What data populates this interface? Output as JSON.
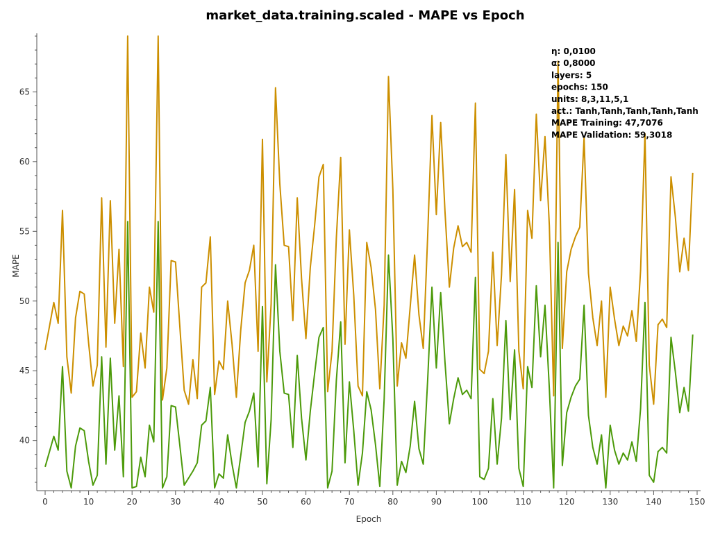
{
  "chart_data": {
    "type": "line",
    "title": "market_data.training.scaled - MAPE vs Epoch",
    "xlabel": "Epoch",
    "ylabel": "MAPE",
    "xlim": [
      0,
      150
    ],
    "ylim": [
      36.4,
      69.2
    ],
    "x_ticks": [
      0,
      10,
      20,
      30,
      40,
      50,
      60,
      70,
      80,
      90,
      100,
      110,
      120,
      130,
      140,
      150
    ],
    "y_ticks": [
      40,
      45,
      50,
      55,
      60,
      65
    ],
    "grid": false,
    "legend": "none",
    "series": [
      {
        "color": "#cc8f00",
        "values": [
          46.5,
          48.2,
          49.9,
          48.4,
          56.5,
          46.0,
          43.4,
          48.8,
          50.7,
          50.5,
          47.0,
          43.9,
          45.4,
          57.4,
          46.7,
          57.2,
          48.4,
          53.7,
          45.3,
          69.0,
          43.1,
          43.5,
          47.7,
          45.2,
          51.0,
          49.2,
          69.0,
          42.9,
          45.2,
          52.9,
          52.8,
          48.1,
          43.6,
          42.6,
          45.8,
          43.0,
          51.0,
          51.3,
          54.6,
          43.3,
          45.7,
          45.1,
          50.0,
          46.9,
          43.1,
          47.9,
          51.3,
          52.2,
          54.0,
          46.4,
          61.6,
          44.2,
          49.8,
          65.3,
          58.4,
          54.0,
          53.9,
          48.6,
          57.4,
          51.6,
          47.3,
          52.4,
          55.4,
          58.9,
          59.8,
          43.5,
          46.4,
          54.5,
          60.3,
          46.9,
          55.1,
          50.4,
          43.9,
          43.2,
          54.2,
          52.4,
          49.4,
          43.7,
          49.7,
          66.1,
          58.0,
          43.9,
          47.0,
          45.9,
          49.6,
          53.3,
          49.0,
          46.6,
          54.6,
          63.3,
          56.2,
          62.8,
          56.4,
          51.0,
          53.8,
          55.4,
          53.9,
          54.2,
          53.5,
          64.2,
          45.1,
          44.8,
          46.4,
          53.5,
          46.8,
          51.9,
          60.5,
          51.4,
          58.0,
          46.4,
          43.7,
          56.5,
          54.5,
          63.4,
          57.2,
          61.8,
          55.4,
          43.2,
          67.2,
          46.6,
          52.1,
          53.7,
          54.6,
          55.3,
          61.7,
          52.0,
          48.8,
          46.8,
          50.0,
          43.1,
          51.0,
          48.7,
          46.8,
          48.2,
          47.5,
          49.3,
          47.1,
          52.2,
          62.0,
          45.4,
          42.6,
          48.3,
          48.7,
          48.1,
          58.9,
          56.0,
          52.1,
          54.5,
          52.2,
          59.2
        ]
      },
      {
        "color": "#4c9a0a",
        "values": [
          38.1,
          39.2,
          40.3,
          39.3,
          45.3,
          37.8,
          36.6,
          39.6,
          40.9,
          40.7,
          38.5,
          36.8,
          37.5,
          46.0,
          38.3,
          45.9,
          39.3,
          43.2,
          37.4,
          55.7,
          36.6,
          36.7,
          38.8,
          37.4,
          41.1,
          39.9,
          55.7,
          36.6,
          37.4,
          42.5,
          42.4,
          39.6,
          36.8,
          37.3,
          37.8,
          38.4,
          41.1,
          41.4,
          43.8,
          36.6,
          37.6,
          37.3,
          40.4,
          38.3,
          36.6,
          38.9,
          41.3,
          42.1,
          43.4,
          38.1,
          49.6,
          36.9,
          41.5,
          52.6,
          46.4,
          43.4,
          43.3,
          39.5,
          46.1,
          41.6,
          38.6,
          42.1,
          44.8,
          47.4,
          48.1,
          36.6,
          37.8,
          44.3,
          48.5,
          38.4,
          44.2,
          40.7,
          36.8,
          39.1,
          43.5,
          42.2,
          39.7,
          36.7,
          43.0,
          53.3,
          47.3,
          36.8,
          38.5,
          37.7,
          39.6,
          42.8,
          39.4,
          38.3,
          44.3,
          51.0,
          45.2,
          50.6,
          45.6,
          41.2,
          43.0,
          44.5,
          43.3,
          43.6,
          43.0,
          51.7,
          37.4,
          37.2,
          38.0,
          43.0,
          38.3,
          41.6,
          48.6,
          41.5,
          46.5,
          38.0,
          36.7,
          45.3,
          43.8,
          51.1,
          46.0,
          49.7,
          43.7,
          36.6,
          54.2,
          38.2,
          42.0,
          43.1,
          43.9,
          44.4,
          49.7,
          41.8,
          39.5,
          38.3,
          40.4,
          36.6,
          41.1,
          39.3,
          38.3,
          39.1,
          38.6,
          39.9,
          38.5,
          42.3,
          49.9,
          37.5,
          37.0,
          39.2,
          39.5,
          39.1,
          47.4,
          44.9,
          42.0,
          43.8,
          42.1,
          47.6
        ]
      }
    ],
    "annotation_lines": [
      "η: 0,0100",
      "α: 0,8000",
      "layers: 5",
      "epochs: 150",
      "units: 8,3,11,5,1",
      "act.: Tanh,Tanh,Tanh,Tanh,Tanh",
      "MAPE Training: 47,7076",
      "MAPE Validation: 59,3018"
    ]
  }
}
